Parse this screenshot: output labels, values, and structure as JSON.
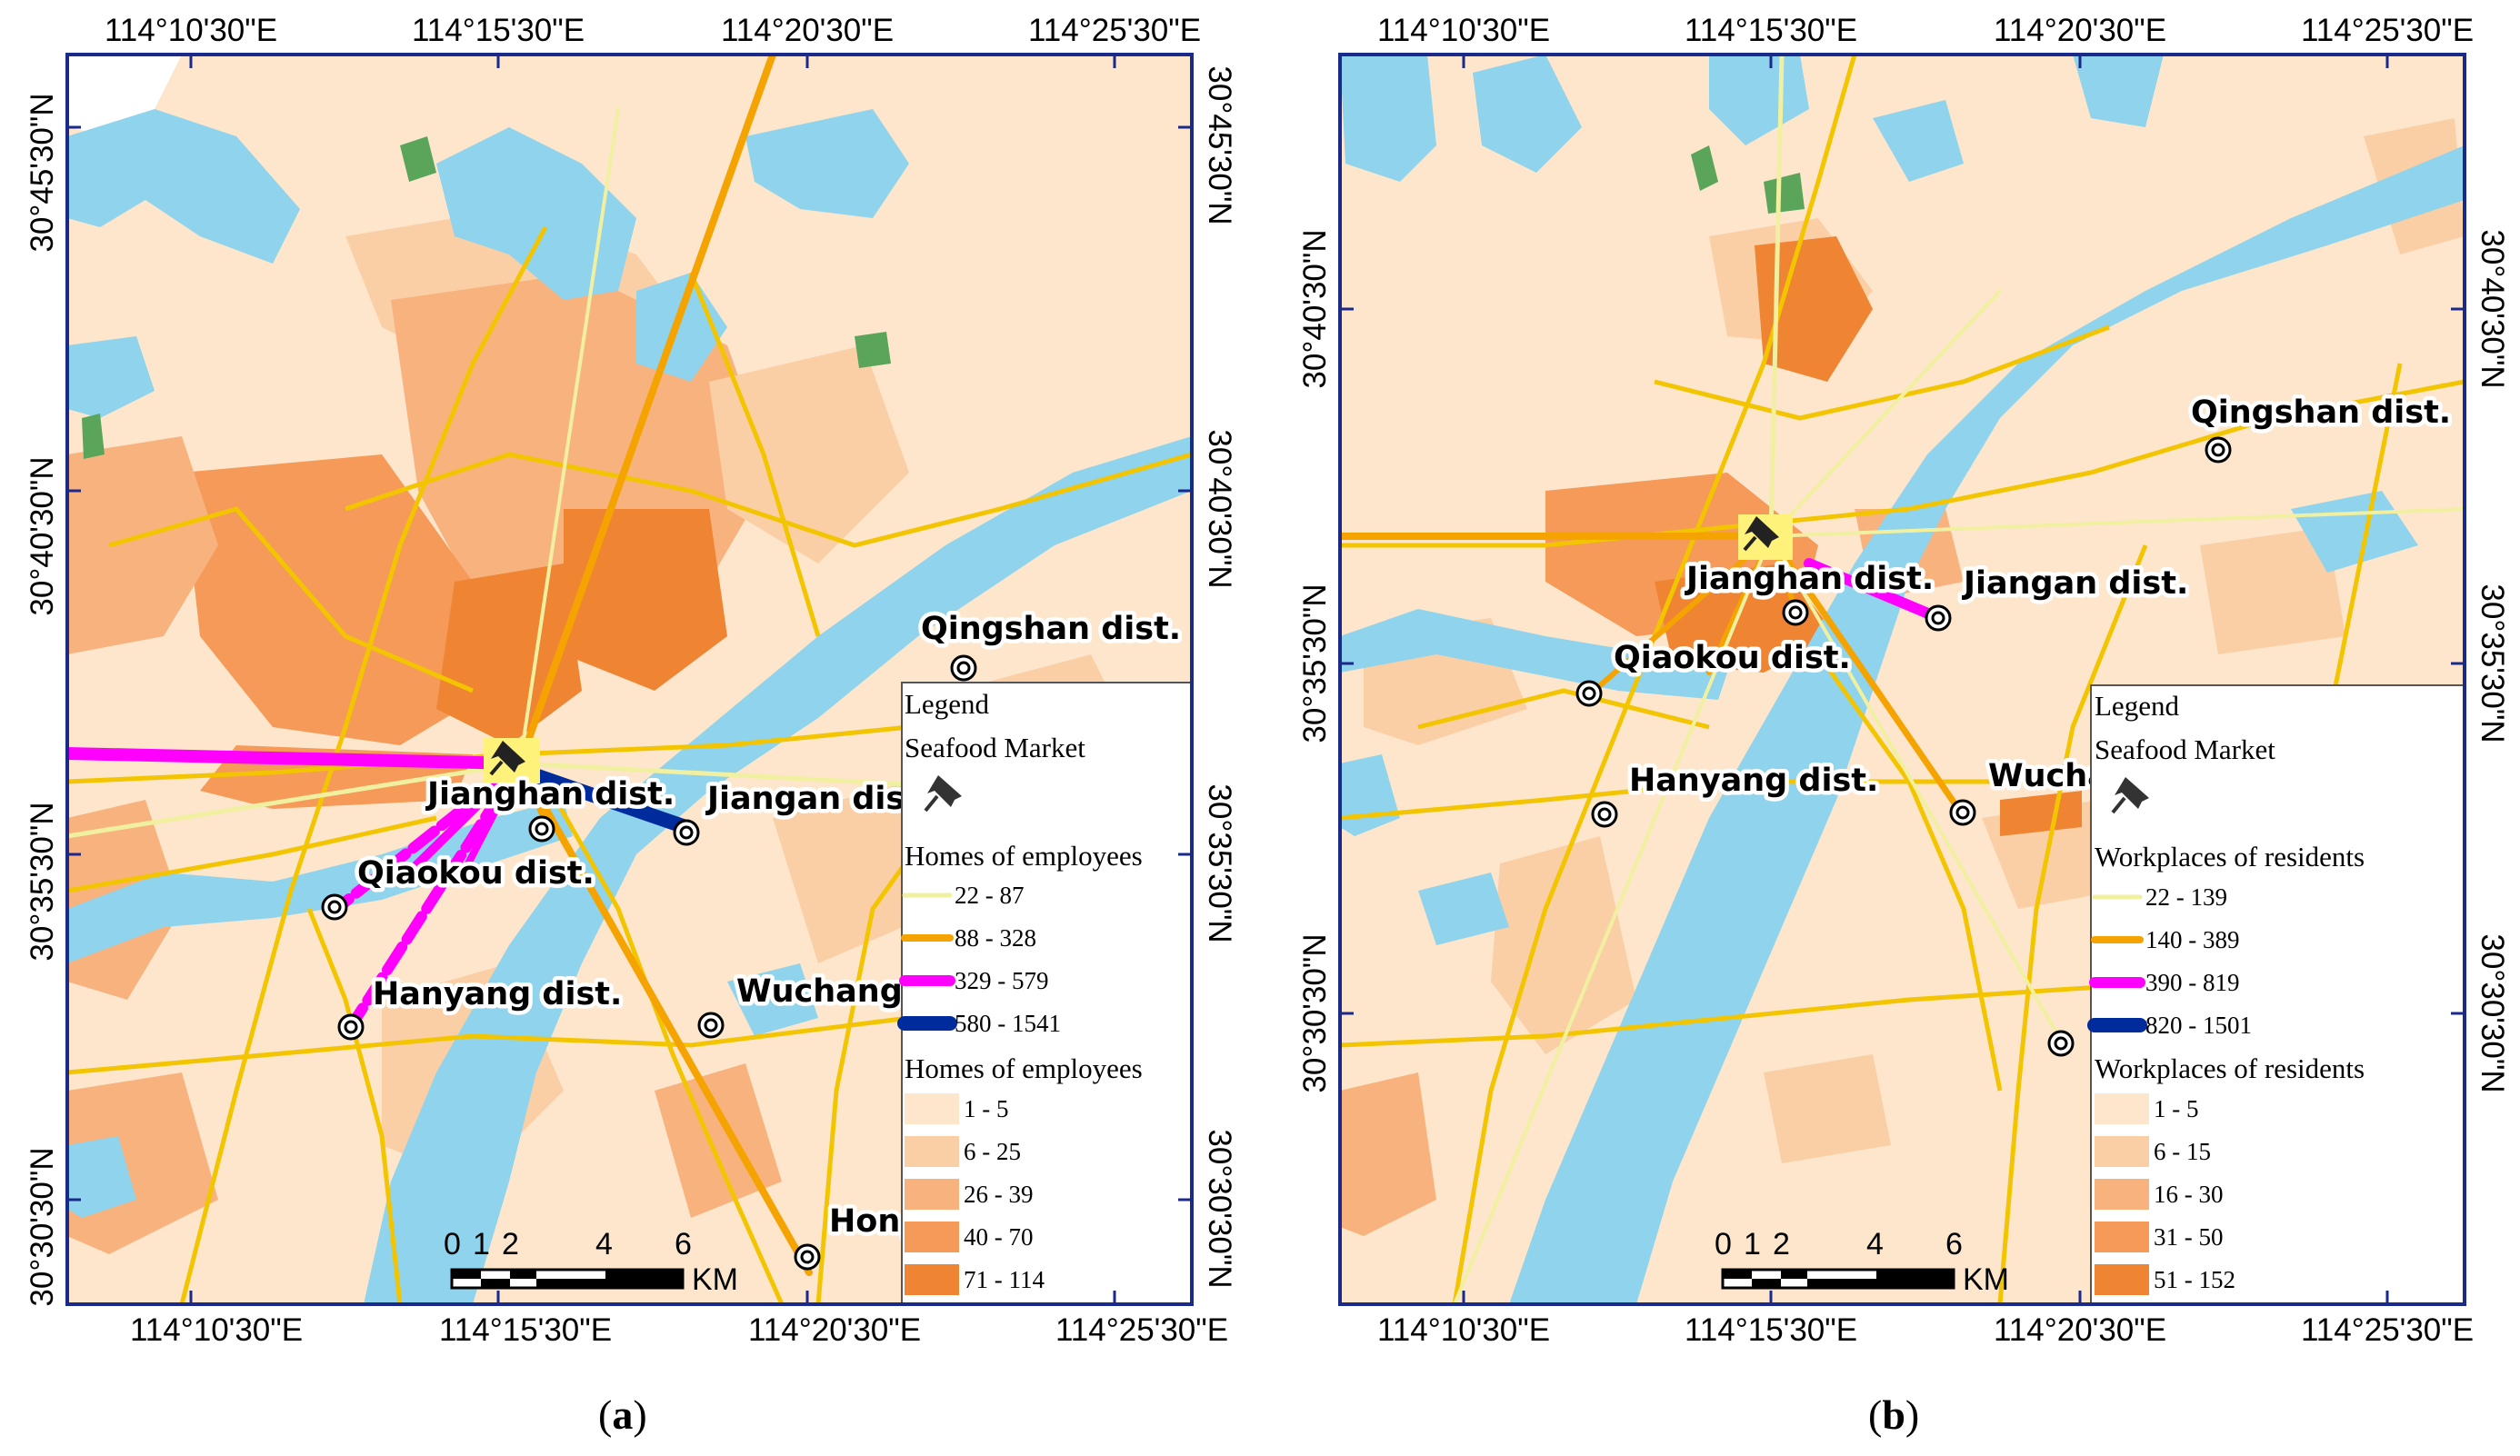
{
  "panels": [
    {
      "id": "a",
      "caption_open": "(",
      "caption_letter": "a",
      "caption_close": ")",
      "top_ticks": [
        "114°10'30\"E",
        "114°15'30\"E",
        "114°20'30\"E",
        "114°25'30\"E"
      ],
      "bottom_ticks": [
        "114°10'30\"E",
        "114°15'30\"E",
        "114°20'30\"E",
        "114°25'30\"E"
      ],
      "left_ticks": [
        "30°45'30\"N",
        "30°40'30\"N",
        "30°35'30\"N",
        "30°30'30\"N"
      ],
      "right_ticks": [
        "30°45'30\"N",
        "30°40'30\"N",
        "30°35'30\"N",
        "30°30'30\"N"
      ],
      "districts": [
        "Qingshan dist.",
        "Jianghan dist.",
        "Jiangan dist.",
        "Qiaokou dist.",
        "Hanyang dist.",
        "Wuchang",
        "Hong"
      ],
      "legend": {
        "title": "Legend",
        "market": "Seafood Market",
        "line_title": "Homes of employees",
        "line_classes": [
          {
            "range": "22 - 87",
            "color": "#f0f0a0"
          },
          {
            "range": "88 - 328",
            "color": "#f5a300"
          },
          {
            "range": "329 - 579",
            "color": "#ff00ff"
          },
          {
            "range": "580 - 1541",
            "color": "#002b9c"
          }
        ],
        "area_title": "Homes of employees",
        "area_classes": [
          {
            "range": "1 - 5",
            "color": "#fde6cc"
          },
          {
            "range": "6 - 25",
            "color": "#fbcfa6"
          },
          {
            "range": "26 - 39",
            "color": "#f8b27e"
          },
          {
            "range": "40 - 70",
            "color": "#f59a58"
          },
          {
            "range": "71 - 114",
            "color": "#ef8432"
          }
        ]
      },
      "scale": {
        "ticks": [
          "0",
          "1",
          "2",
          "4",
          "6"
        ],
        "unit": "KM"
      }
    },
    {
      "id": "b",
      "caption_open": "(",
      "caption_letter": "b",
      "caption_close": ")",
      "top_ticks": [
        "114°10'30\"E",
        "114°15'30\"E",
        "114°20'30\"E",
        "114°25'30\"E"
      ],
      "bottom_ticks": [
        "114°10'30\"E",
        "114°15'30\"E",
        "114°20'30\"E",
        "114°25'30\"E"
      ],
      "left_ticks": [
        "30°40'30\"N",
        "30°35'30\"N",
        "30°30'30\"N"
      ],
      "right_ticks": [
        "30°40'30\"N",
        "30°35'30\"N",
        "30°30'30\"N"
      ],
      "districts": [
        "Qingshan dist.",
        "Jianghan dist.",
        "Jiangan dist.",
        "Qiaokou dist.",
        "Hanyang dist.",
        "Wucha"
      ],
      "legend": {
        "title": "Legend",
        "market": "Seafood Market",
        "line_title": "Workplaces of residents",
        "line_classes": [
          {
            "range": "22 - 139",
            "color": "#f0f0a0"
          },
          {
            "range": "140 - 389",
            "color": "#f5a300"
          },
          {
            "range": "390 - 819",
            "color": "#ff00ff"
          },
          {
            "range": "820 - 1501",
            "color": "#002b9c"
          }
        ],
        "area_title": "Workplaces of residents",
        "area_classes": [
          {
            "range": "1 - 5",
            "color": "#fde6cc"
          },
          {
            "range": "6 - 15",
            "color": "#fbcfa6"
          },
          {
            "range": "16 - 30",
            "color": "#f8b27e"
          },
          {
            "range": "31 - 50",
            "color": "#f59a58"
          },
          {
            "range": "51 - 152",
            "color": "#ef8432"
          }
        ]
      },
      "scale": {
        "ticks": [
          "0",
          "1",
          "2",
          "4",
          "6"
        ],
        "unit": "KM"
      }
    }
  ],
  "colors": {
    "base": "#fde6cc",
    "water": "#8fd3ec",
    "road": "#f2c500",
    "frame": "#1a2a8a",
    "forest": "#5aa55a"
  }
}
